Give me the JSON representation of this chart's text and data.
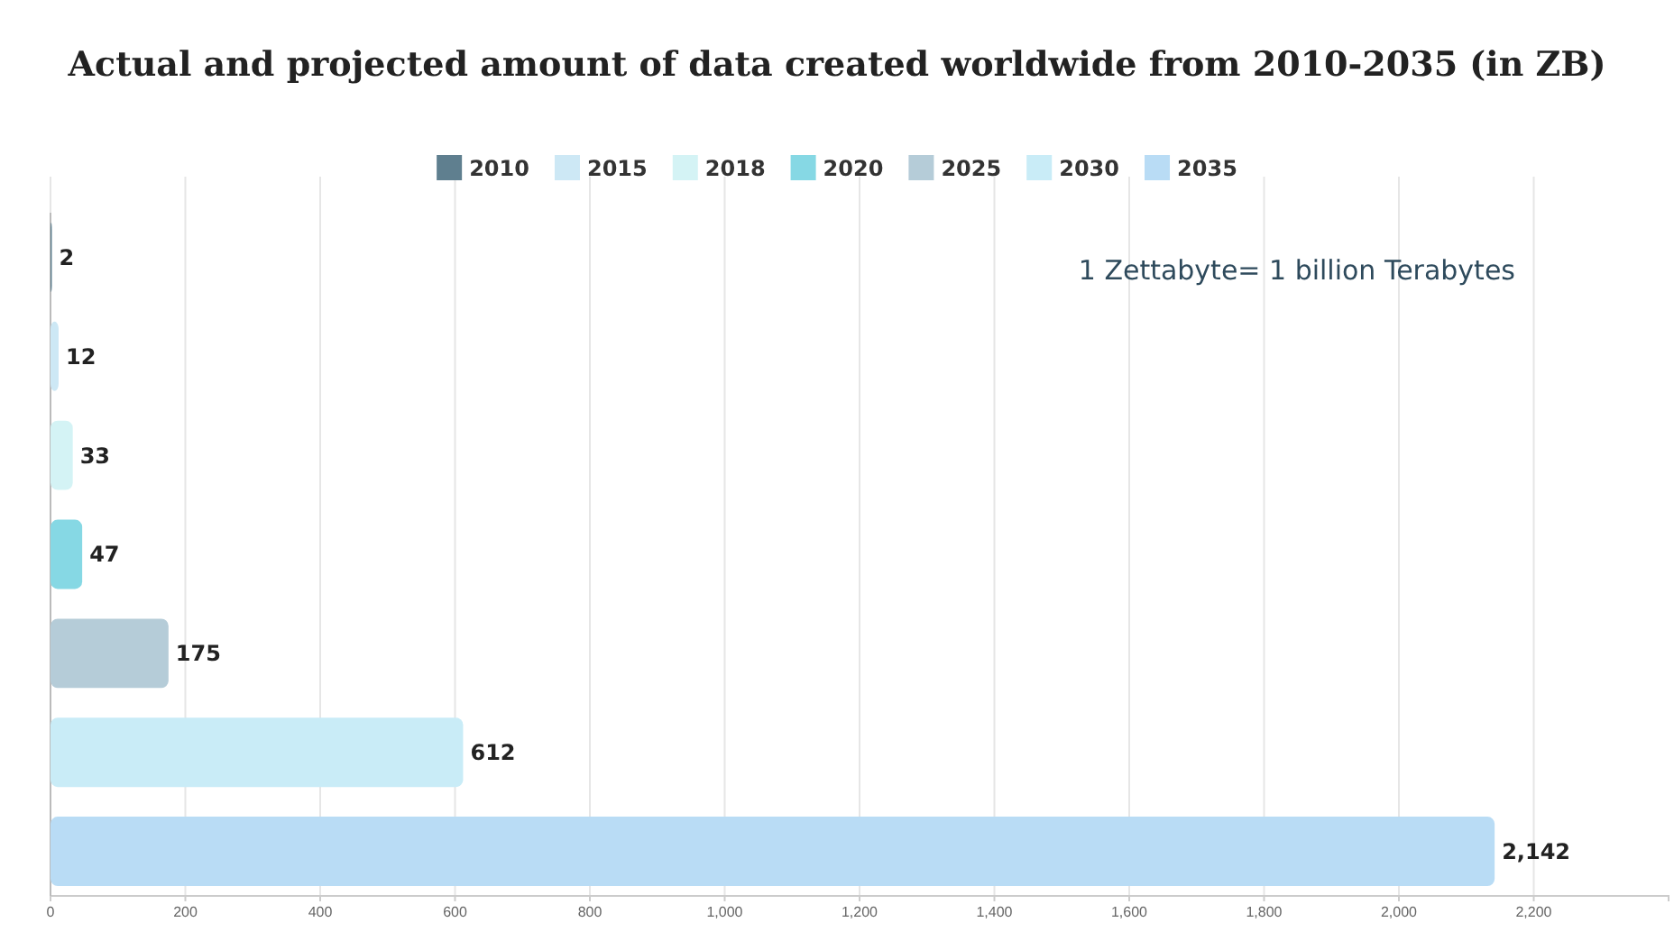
{
  "chart_data": {
    "type": "bar",
    "orientation": "horizontal",
    "title": "Actual and projected amount of data created worldwide from 2010-2035 (in ZB)",
    "categories": [
      null,
      null,
      null,
      null,
      null,
      null,
      null
    ],
    "series": [
      {
        "name": "2010",
        "color": "#5f7f8f",
        "values": [
          2,
          null,
          null,
          null,
          null,
          null,
          null
        ],
        "value_labels": [
          "2",
          null,
          null,
          null,
          null,
          null,
          null
        ]
      },
      {
        "name": "2015",
        "color": "#cde8f5",
        "values": [
          null,
          12,
          null,
          null,
          null,
          null,
          null
        ],
        "value_labels": [
          null,
          "12",
          null,
          null,
          null,
          null,
          null
        ]
      },
      {
        "name": "2018",
        "color": "#d4f3f5",
        "values": [
          null,
          null,
          33,
          null,
          null,
          null,
          null
        ],
        "value_labels": [
          null,
          null,
          "33",
          null,
          null,
          null,
          null
        ]
      },
      {
        "name": "2020",
        "color": "#86d8e4",
        "values": [
          null,
          null,
          null,
          47,
          null,
          null,
          null
        ],
        "value_labels": [
          null,
          null,
          null,
          "47",
          null,
          null,
          null
        ]
      },
      {
        "name": "2025",
        "color": "#b5ccd8",
        "values": [
          null,
          null,
          null,
          null,
          175,
          null,
          null
        ],
        "value_labels": [
          null,
          null,
          null,
          null,
          "175",
          null,
          null
        ]
      },
      {
        "name": "2030",
        "color": "#c9ecf7",
        "values": [
          null,
          null,
          null,
          null,
          null,
          612,
          null
        ],
        "value_labels": [
          null,
          null,
          null,
          null,
          null,
          "612",
          null
        ]
      },
      {
        "name": "2035",
        "color": "#b9dcf5",
        "values": [
          null,
          null,
          null,
          null,
          null,
          null,
          2142
        ],
        "value_labels": [
          null,
          null,
          null,
          null,
          null,
          null,
          "2,142"
        ]
      }
    ],
    "xlim": [
      0,
      2400
    ],
    "xticks": [
      0,
      200,
      400,
      600,
      800,
      {
        "value": 1000,
        "label": "1,000"
      },
      {
        "value": 1200,
        "label": "1,200"
      },
      {
        "value": 1400,
        "label": "1,400"
      },
      {
        "value": 1600,
        "label": "1,600"
      },
      {
        "value": 1800,
        "label": "1,800"
      },
      {
        "value": 2000,
        "label": "2,000"
      },
      {
        "value": 2200,
        "label": "2,200"
      }
    ],
    "grid": "x",
    "legend": "top",
    "tick_labels": "x",
    "annotations": [
      "1 Zettabyte= 1 billion Terabytes"
    ]
  }
}
